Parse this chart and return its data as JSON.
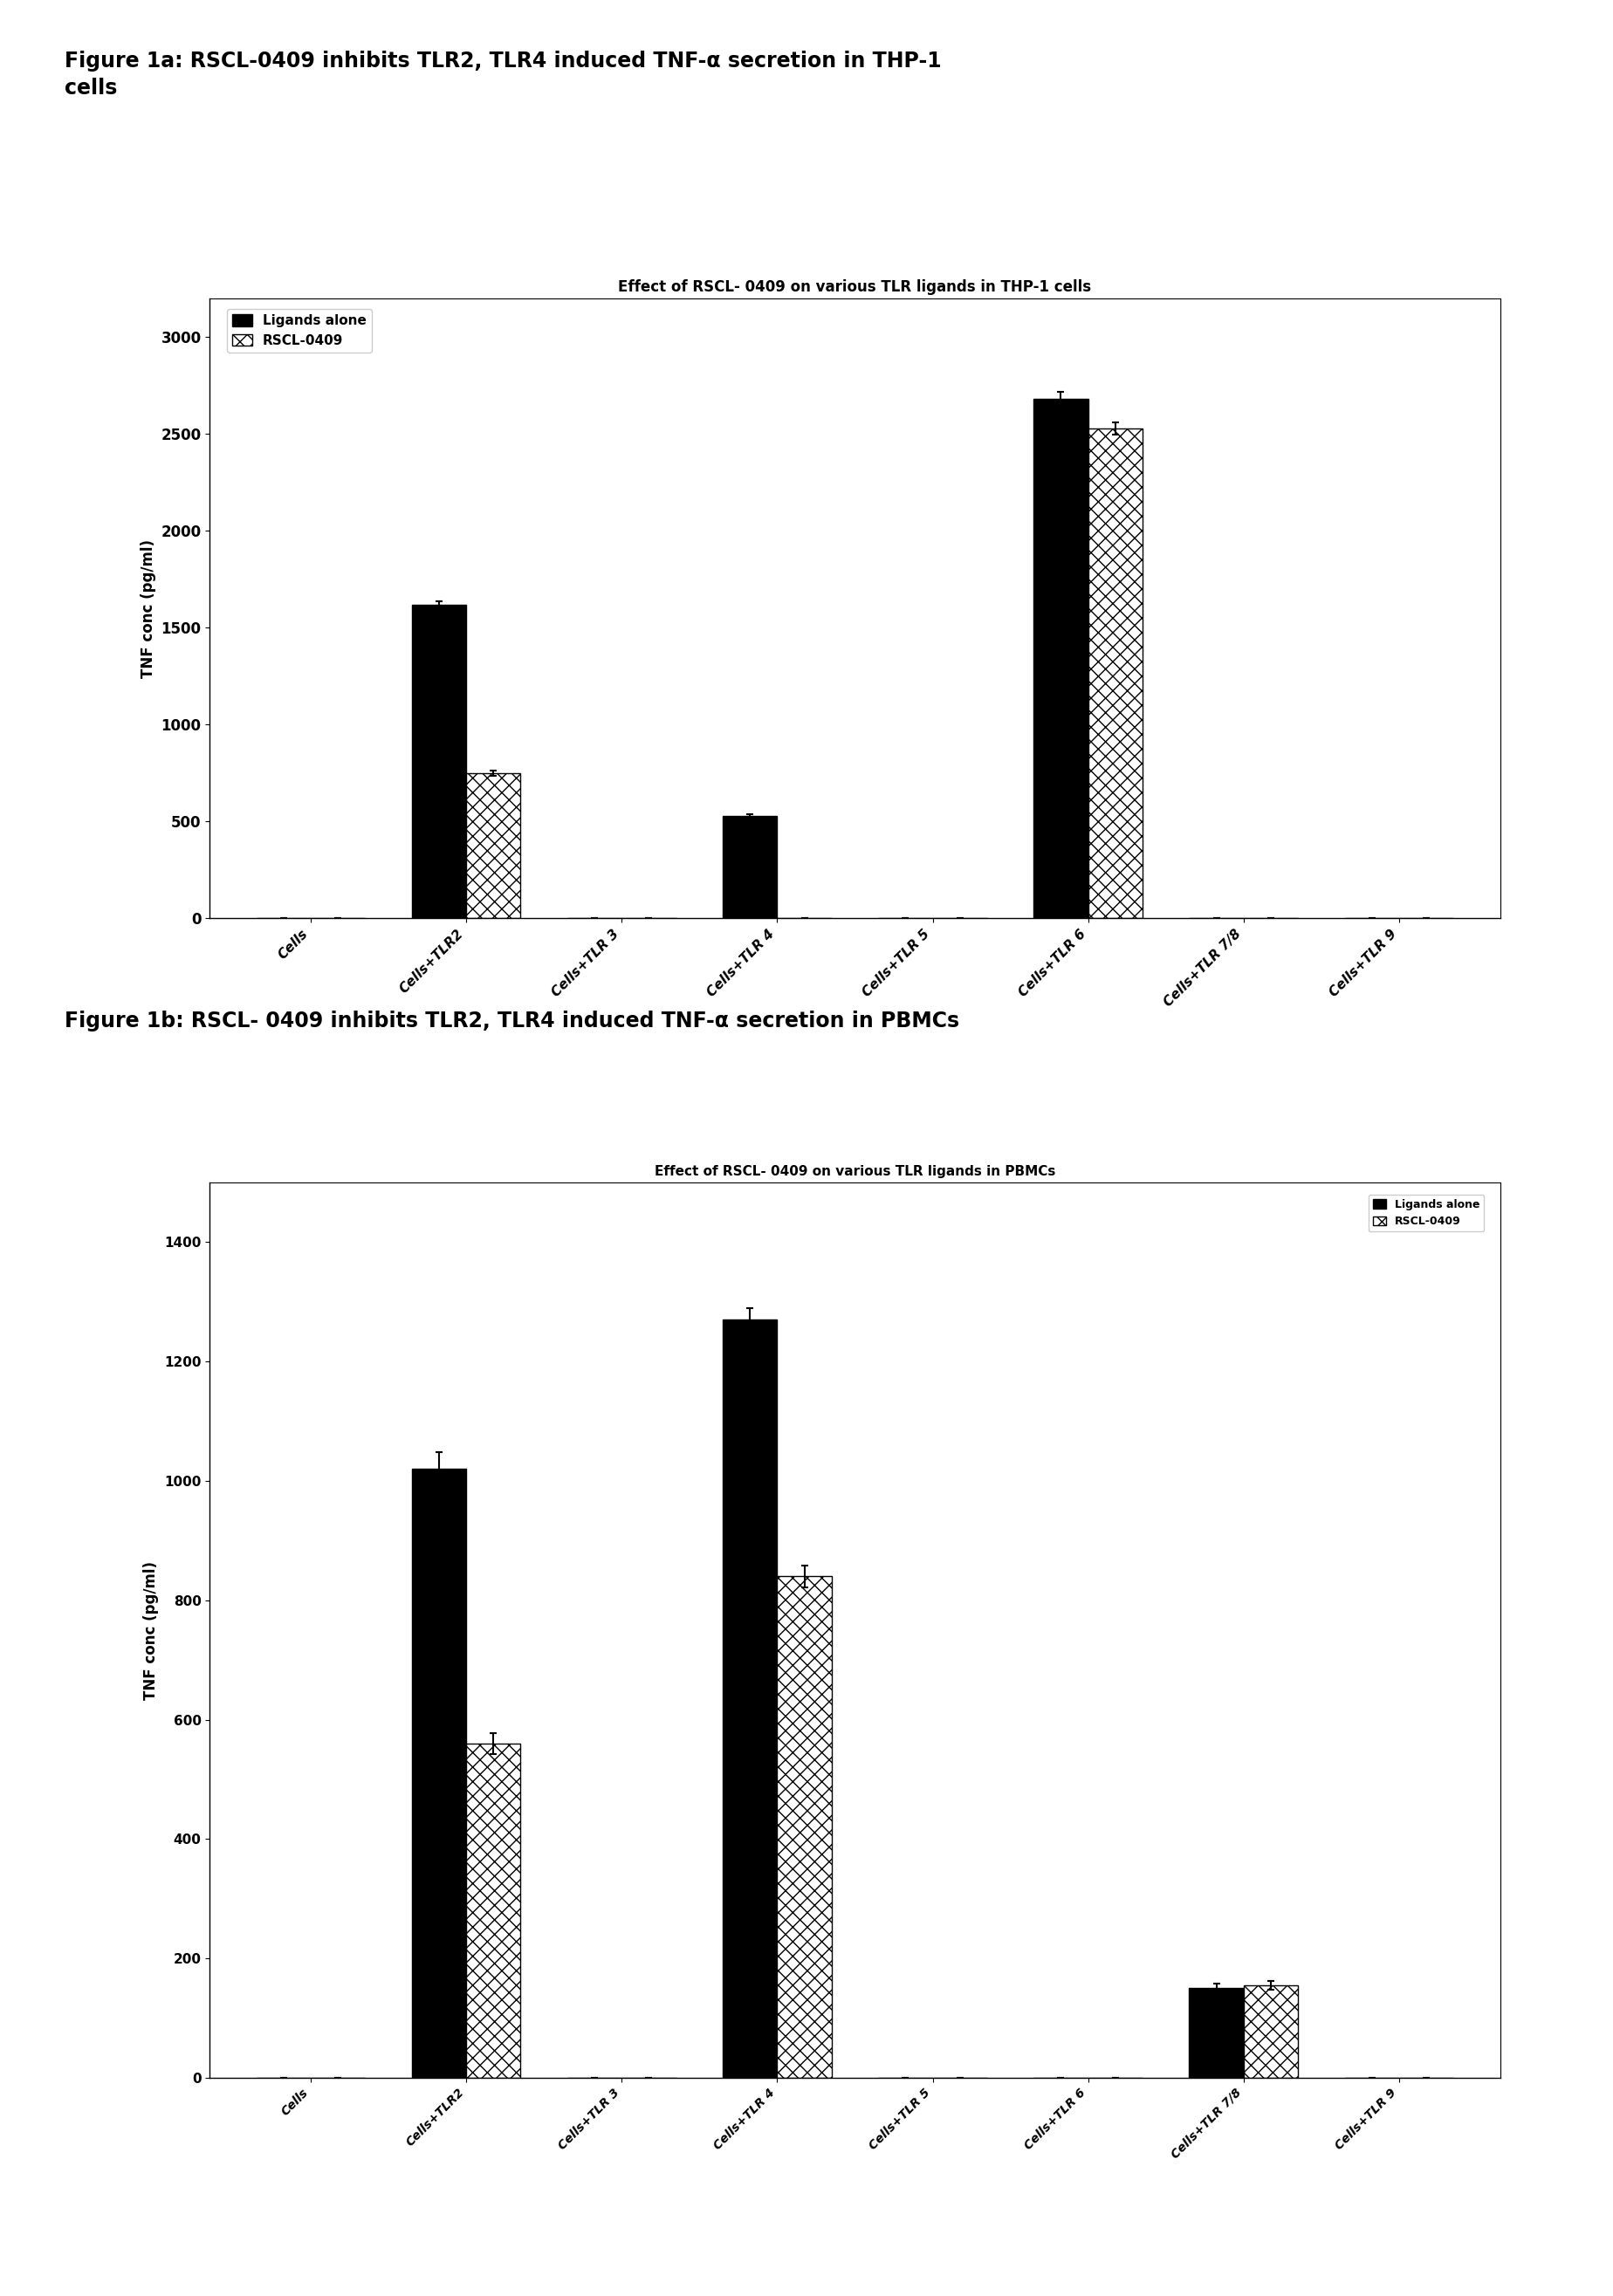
{
  "fig1a_title": "Figure 1a: RSCL-0409 inhibits TLR2, TLR4 induced TNF-α secretion in THP-1\ncells",
  "fig1b_title": "Figure 1b: RSCL- 0409 inhibits TLR2, TLR4 induced TNF-α secretion in PBMCs",
  "chart1_title": "Effect of RSCL- 0409 on various TLR ligands in THP-1 cells",
  "chart2_title": "Effect of RSCL- 0409 on various TLR ligands in PBMCs",
  "categories": [
    "Cells",
    "Cells+TLR2",
    "Cells+TLR 3",
    "Cells+TLR 4",
    "Cells+TLR 5",
    "Cells+TLR 6",
    "Cells+TLR 7/8",
    "Cells+TLR 9"
  ],
  "chart1_ligands": [
    0,
    1620,
    0,
    530,
    0,
    2680,
    0,
    0
  ],
  "chart1_rscl": [
    0,
    750,
    0,
    0,
    0,
    2530,
    0,
    0
  ],
  "chart2_ligands": [
    0,
    1020,
    0,
    1270,
    0,
    0,
    150,
    0
  ],
  "chart2_rscl": [
    0,
    560,
    0,
    840,
    0,
    0,
    155,
    0
  ],
  "chart1_ligands_err": [
    0,
    18,
    0,
    8,
    0,
    38,
    0,
    0
  ],
  "chart1_rscl_err": [
    0,
    12,
    0,
    0,
    0,
    32,
    0,
    0
  ],
  "chart2_ligands_err": [
    0,
    28,
    0,
    20,
    0,
    0,
    8,
    0
  ],
  "chart2_rscl_err": [
    0,
    18,
    0,
    18,
    0,
    0,
    7,
    0
  ],
  "ylabel": "TNF conc (pg/ml)",
  "chart1_ylim": [
    0,
    3200
  ],
  "chart2_ylim": [
    0,
    1500
  ],
  "chart1_yticks": [
    0,
    500,
    1000,
    1500,
    2000,
    2500,
    3000
  ],
  "chart2_yticks": [
    0,
    200,
    400,
    600,
    800,
    1000,
    1200,
    1400
  ],
  "bar_width": 0.35,
  "color_ligands": "#000000",
  "legend1_ligands": "Ligands alone",
  "legend1_rscl": "RSCL-0409",
  "legend2_ligands": "Ligands alone",
  "legend2_rscl": "RSCL-0409",
  "fig_bg": "#ffffff"
}
